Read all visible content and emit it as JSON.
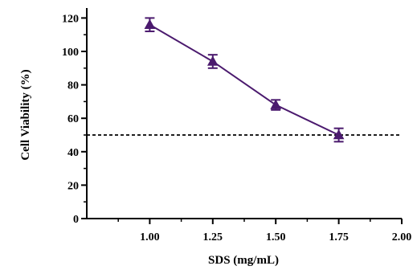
{
  "chart_data": {
    "type": "line",
    "xlabel": "SDS (mg/mL)",
    "ylabel": "Cell Viability (%)",
    "xlim": [
      0.75,
      2.0
    ],
    "ylim": [
      0,
      125
    ],
    "x_ticks": [
      1.0,
      1.25,
      1.5,
      1.75,
      2.0
    ],
    "x_tick_labels": [
      "1.00",
      "1.25",
      "1.50",
      "1.75",
      "2.00"
    ],
    "y_ticks": [
      0,
      20,
      40,
      60,
      80,
      100,
      120
    ],
    "y_tick_labels": [
      "0",
      "20",
      "40",
      "60",
      "80",
      "100",
      "120"
    ],
    "series": [
      {
        "x": [
          1.0,
          1.25,
          1.5,
          1.75
        ],
        "y": [
          116,
          94,
          68,
          50
        ],
        "error": [
          4,
          4,
          3,
          4
        ],
        "color": "#4b1a6e",
        "marker": "triangle"
      }
    ],
    "reference_line": {
      "y": 50,
      "style": "dashed",
      "color": "#000000"
    },
    "grid": false,
    "legend": "none"
  }
}
